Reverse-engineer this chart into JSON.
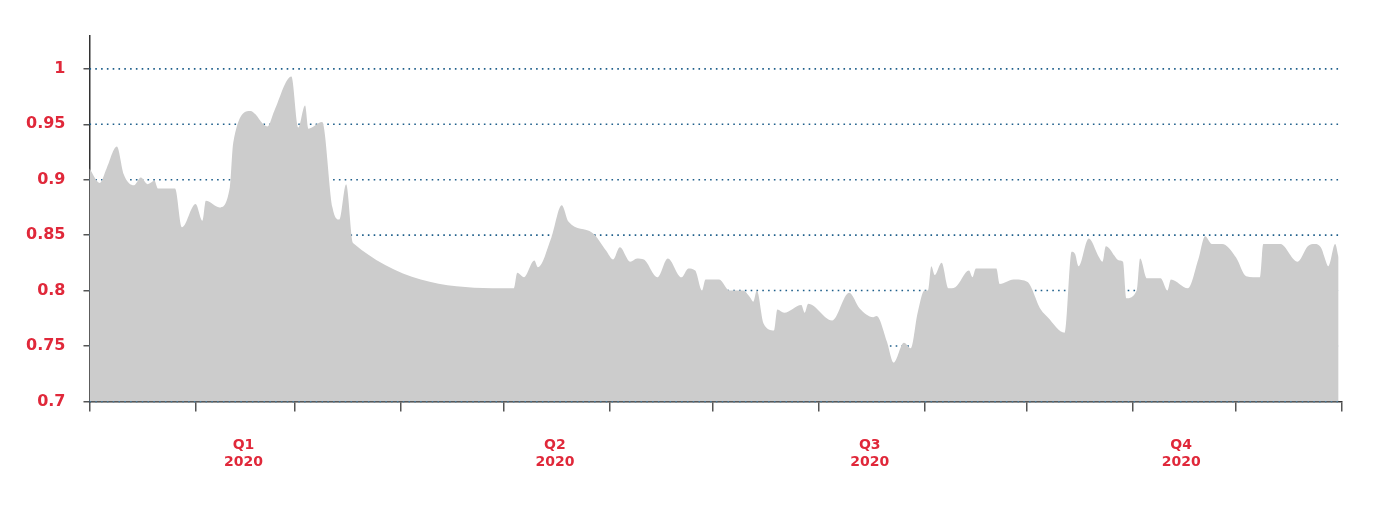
{
  "chart_data": {
    "type": "area",
    "x": [
      "2020-01-01",
      "2020-01-04",
      "2020-01-06",
      "2020-01-09",
      "2020-01-11",
      "2020-01-14",
      "2020-01-16",
      "2020-01-18",
      "2020-01-20",
      "2020-01-21",
      "2020-01-26",
      "2020-01-28",
      "2020-02-01",
      "2020-02-03",
      "2020-02-04",
      "2020-02-08",
      "2020-02-11",
      "2020-02-12",
      "2020-02-17",
      "2020-02-22",
      "2020-02-24",
      "2020-02-29",
      "2020-03-02",
      "2020-03-04",
      "2020-03-05",
      "2020-03-09",
      "2020-03-12",
      "2020-03-14",
      "2020-03-16",
      "2020-03-18",
      "2020-05-04",
      "2020-05-05",
      "2020-05-07",
      "2020-05-10",
      "2020-05-11",
      "2020-05-15",
      "2020-05-18",
      "2020-05-20",
      "2020-05-27",
      "2020-05-31",
      "2020-06-02",
      "2020-06-04",
      "2020-06-07",
      "2020-06-09",
      "2020-06-11",
      "2020-06-15",
      "2020-06-18",
      "2020-06-22",
      "2020-06-24",
      "2020-06-26",
      "2020-06-28",
      "2020-06-29",
      "2020-07-03",
      "2020-07-06",
      "2020-07-10",
      "2020-07-12",
      "2020-07-13",
      "2020-07-14",
      "2020-07-16",
      "2020-07-19",
      "2020-07-20",
      "2020-07-22",
      "2020-07-27",
      "2020-07-28",
      "2020-07-29",
      "2020-08-05",
      "2020-08-10",
      "2020-08-13",
      "2020-08-17",
      "2020-08-18",
      "2020-08-21",
      "2020-08-23",
      "2020-08-26",
      "2020-08-28",
      "2020-08-30",
      "2020-09-01",
      "2020-09-02",
      "2020-09-03",
      "2020-09-04",
      "2020-09-06",
      "2020-09-08",
      "2020-09-10",
      "2020-09-14",
      "2020-09-15",
      "2020-09-16",
      "2020-09-22",
      "2020-09-23",
      "2020-09-27",
      "2020-10-01",
      "2020-10-05",
      "2020-10-07",
      "2020-10-12",
      "2020-10-14",
      "2020-10-15",
      "2020-10-16",
      "2020-10-19",
      "2020-10-22",
      "2020-10-23",
      "2020-10-24",
      "2020-10-28",
      "2020-10-29",
      "2020-10-30",
      "2020-11-02",
      "2020-11-03",
      "2020-11-05",
      "2020-11-09",
      "2020-11-11",
      "2020-11-12",
      "2020-11-17",
      "2020-11-20",
      "2020-11-22",
      "2020-11-24",
      "2020-11-27",
      "2020-12-01",
      "2020-12-04",
      "2020-12-08",
      "2020-12-09",
      "2020-12-14",
      "2020-12-19",
      "2020-12-22",
      "2020-12-24",
      "2020-12-26",
      "2020-12-27",
      "2020-12-28",
      "2020-12-30",
      "2020-12-31"
    ],
    "series": [
      {
        "color": "#cccccc",
        "values": [
          0.91,
          0.897,
          0.91,
          0.93,
          0.905,
          0.895,
          0.902,
          0.896,
          0.899,
          0.892,
          0.892,
          0.857,
          0.878,
          0.863,
          0.881,
          0.875,
          0.893,
          0.933,
          0.962,
          0.948,
          0.962,
          0.993,
          0.947,
          0.967,
          0.946,
          0.952,
          0.875,
          0.864,
          0.896,
          0.843,
          0.802,
          0.816,
          0.812,
          0.827,
          0.821,
          0.848,
          0.877,
          0.862,
          0.852,
          0.836,
          0.828,
          0.839,
          0.826,
          0.829,
          0.828,
          0.812,
          0.829,
          0.812,
          0.82,
          0.818,
          0.8,
          0.81,
          0.81,
          0.8,
          0.8,
          0.794,
          0.79,
          0.8,
          0.77,
          0.764,
          0.783,
          0.78,
          0.787,
          0.78,
          0.788,
          0.773,
          0.798,
          0.784,
          0.776,
          0.777,
          0.754,
          0.735,
          0.753,
          0.748,
          0.78,
          0.8,
          0.8,
          0.822,
          0.814,
          0.825,
          0.802,
          0.803,
          0.818,
          0.812,
          0.82,
          0.82,
          0.806,
          0.81,
          0.808,
          0.783,
          0.776,
          0.762,
          0.835,
          0.833,
          0.822,
          0.847,
          0.83,
          0.826,
          0.84,
          0.827,
          0.826,
          0.793,
          0.8,
          0.829,
          0.811,
          0.811,
          0.8,
          0.81,
          0.802,
          0.828,
          0.849,
          0.842,
          0.842,
          0.83,
          0.813,
          0.812,
          0.842,
          0.842,
          0.826,
          0.84,
          0.842,
          0.838,
          0.829,
          0.822,
          0.842,
          0.83
        ]
      }
    ],
    "xlim": [
      "2020-01-01",
      "2021-01-01"
    ],
    "xticks": [
      {
        "value": "2020-01-01",
        "label": null
      },
      {
        "value": "2020-02-01",
        "label": null
      },
      {
        "value": "2020-02-15",
        "label": "Q1 2020"
      },
      {
        "value": "2020-03-01",
        "label": null
      },
      {
        "value": "2020-04-01",
        "label": null
      },
      {
        "value": "2020-05-01",
        "label": null
      },
      {
        "value": "2020-05-16",
        "label": "Q2 2020"
      },
      {
        "value": "2020-06-01",
        "label": null
      },
      {
        "value": "2020-07-01",
        "label": null
      },
      {
        "value": "2020-08-01",
        "label": null
      },
      {
        "value": "2020-08-16",
        "label": "Q3 2020"
      },
      {
        "value": "2020-09-01",
        "label": null
      },
      {
        "value": "2020-10-01",
        "label": null
      },
      {
        "value": "2020-11-01",
        "label": null
      },
      {
        "value": "2020-11-15",
        "label": "Q4 2020"
      },
      {
        "value": "2020-12-01",
        "label": null
      },
      {
        "value": "2021-01-01",
        "label": null
      }
    ],
    "ylim": [
      0.7,
      1.03
    ],
    "yticks": [
      0.7,
      0.75,
      0.8,
      0.85,
      0.9,
      0.95,
      1
    ],
    "grid": "y",
    "legend": false
  }
}
